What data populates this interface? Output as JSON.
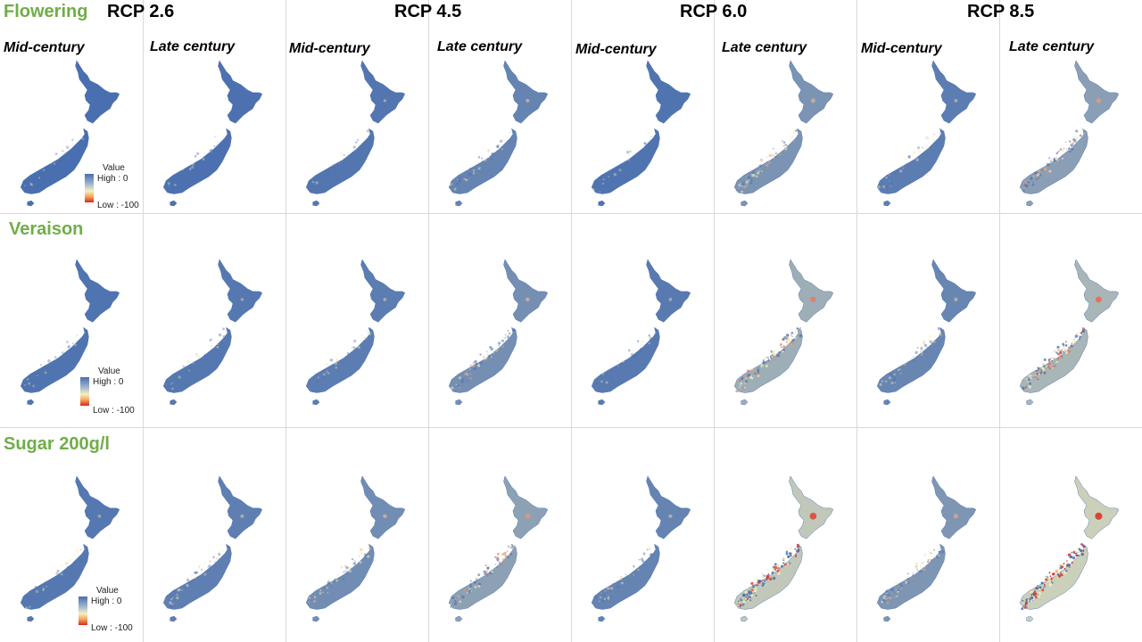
{
  "header": {
    "scenarios": [
      "RCP 2.6",
      "RCP 4.5",
      "RCP 6.0",
      "RCP 8.5"
    ],
    "periods": [
      "Mid-century",
      "Late century"
    ]
  },
  "rows": [
    {
      "title": "Flowering",
      "intensity": [
        0.0,
        0.02,
        0.06,
        0.18,
        0.04,
        0.32,
        0.12,
        0.42
      ]
    },
    {
      "title": "Veraison",
      "intensity": [
        0.04,
        0.08,
        0.12,
        0.28,
        0.1,
        0.55,
        0.2,
        0.62
      ]
    },
    {
      "title": "Sugar 200g/l",
      "intensity": [
        0.08,
        0.14,
        0.26,
        0.44,
        0.18,
        0.78,
        0.34,
        0.85
      ]
    }
  ],
  "legend": {
    "title": "Value",
    "high": "High : 0",
    "low": "Low : -100"
  },
  "colors": {
    "high": "#4a6fb0",
    "mid": "#f3eebd",
    "low": "#d7261e",
    "row_title": "#70ad47"
  }
}
